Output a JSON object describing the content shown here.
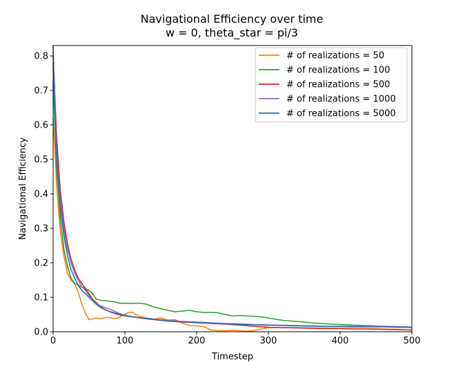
{
  "chart_data": {
    "type": "line",
    "title": "Navigational Efficiency over time",
    "subtitle": "w = 0, theta_star = pi/3",
    "xlabel": "Timestep",
    "ylabel": "Navigational Efficiency",
    "xlim": [
      0,
      500
    ],
    "ylim": [
      0,
      0.83
    ],
    "xticks": [
      0,
      100,
      200,
      300,
      400,
      500
    ],
    "yticks": [
      0.0,
      0.1,
      0.2,
      0.3,
      0.4,
      0.5,
      0.6,
      0.7,
      0.8
    ],
    "xtick_labels": [
      "0",
      "100",
      "200",
      "300",
      "400",
      "500"
    ],
    "ytick_labels": [
      "0.0",
      "0.1",
      "0.2",
      "0.3",
      "0.4",
      "0.5",
      "0.6",
      "0.7",
      "0.8"
    ],
    "grid": false,
    "legend_position": "top-right",
    "series": [
      {
        "name": "# of realizations = 50",
        "color": "#ff7f0e",
        "x": [
          0,
          5,
          10,
          15,
          20,
          25,
          30,
          35,
          40,
          45,
          50,
          55,
          60,
          65,
          70,
          75,
          80,
          85,
          90,
          95,
          100,
          105,
          110,
          115,
          120,
          130,
          140,
          150,
          160,
          170,
          180,
          190,
          200,
          210,
          220,
          230,
          240,
          250,
          260,
          270,
          280,
          290,
          300,
          320,
          340,
          360,
          380,
          400,
          420,
          440,
          460,
          480,
          500
        ],
        "y": [
          0.62,
          0.42,
          0.29,
          0.22,
          0.17,
          0.15,
          0.14,
          0.115,
          0.08,
          0.055,
          0.035,
          0.037,
          0.04,
          0.038,
          0.04,
          0.042,
          0.04,
          0.038,
          0.04,
          0.045,
          0.05,
          0.056,
          0.057,
          0.05,
          0.045,
          0.04,
          0.037,
          0.04,
          0.034,
          0.035,
          0.025,
          0.018,
          0.017,
          0.015,
          0.005,
          0.003,
          0.003,
          0.004,
          0.003,
          0.002,
          0.003,
          0.008,
          0.012,
          0.012,
          0.012,
          0.011,
          0.01,
          0.01,
          0.009,
          0.009,
          0.008,
          0.007,
          0.005
        ]
      },
      {
        "name": "# of realizations = 100",
        "color": "#2ca02c",
        "x": [
          0,
          5,
          10,
          15,
          20,
          25,
          30,
          35,
          40,
          45,
          50,
          55,
          60,
          65,
          70,
          75,
          80,
          85,
          90,
          95,
          100,
          110,
          120,
          130,
          140,
          150,
          160,
          170,
          180,
          190,
          200,
          210,
          220,
          230,
          240,
          250,
          260,
          270,
          280,
          290,
          300,
          320,
          340,
          360,
          380,
          400,
          420,
          440,
          460,
          480,
          500
        ],
        "y": [
          0.72,
          0.47,
          0.33,
          0.24,
          0.19,
          0.155,
          0.14,
          0.135,
          0.13,
          0.125,
          0.12,
          0.11,
          0.095,
          0.092,
          0.09,
          0.09,
          0.088,
          0.087,
          0.084,
          0.082,
          0.083,
          0.082,
          0.083,
          0.08,
          0.072,
          0.067,
          0.062,
          0.058,
          0.06,
          0.062,
          0.058,
          0.056,
          0.056,
          0.055,
          0.05,
          0.046,
          0.047,
          0.046,
          0.045,
          0.043,
          0.04,
          0.033,
          0.03,
          0.026,
          0.023,
          0.021,
          0.019,
          0.018,
          0.016,
          0.014,
          0.012
        ]
      },
      {
        "name": "# of realizations = 500",
        "color": "#d62728",
        "x": [
          0,
          5,
          10,
          15,
          20,
          25,
          30,
          35,
          40,
          45,
          50,
          55,
          60,
          65,
          70,
          80,
          90,
          100,
          110,
          120,
          140,
          160,
          180,
          200,
          220,
          240,
          260,
          280,
          300,
          320,
          340,
          360,
          380,
          400,
          420,
          440,
          460,
          480,
          500
        ],
        "y": [
          0.8,
          0.56,
          0.41,
          0.32,
          0.255,
          0.21,
          0.18,
          0.155,
          0.14,
          0.125,
          0.11,
          0.095,
          0.085,
          0.075,
          0.067,
          0.057,
          0.05,
          0.046,
          0.043,
          0.04,
          0.035,
          0.031,
          0.028,
          0.026,
          0.024,
          0.022,
          0.019,
          0.016,
          0.013,
          0.012,
          0.011,
          0.01,
          0.009,
          0.009,
          0.008,
          0.008,
          0.007,
          0.006,
          0.005
        ]
      },
      {
        "name": "# of realizations = 1000",
        "color": "#9467bd",
        "x": [
          0,
          5,
          10,
          15,
          20,
          25,
          30,
          35,
          40,
          45,
          50,
          55,
          60,
          65,
          70,
          80,
          90,
          100,
          110,
          120,
          140,
          160,
          180,
          200,
          220,
          240,
          260,
          280,
          300,
          320,
          340,
          360,
          380,
          400,
          420,
          440,
          460,
          480,
          500
        ],
        "y": [
          0.83,
          0.52,
          0.38,
          0.3,
          0.24,
          0.2,
          0.17,
          0.15,
          0.13,
          0.12,
          0.105,
          0.092,
          0.082,
          0.076,
          0.072,
          0.065,
          0.055,
          0.047,
          0.044,
          0.041,
          0.037,
          0.033,
          0.03,
          0.028,
          0.026,
          0.024,
          0.023,
          0.021,
          0.02,
          0.019,
          0.018,
          0.017,
          0.016,
          0.016,
          0.016,
          0.017,
          0.016,
          0.015,
          0.014
        ]
      },
      {
        "name": "# of realizations = 5000",
        "color": "#1f77b4",
        "x": [
          0,
          5,
          10,
          15,
          20,
          25,
          30,
          35,
          40,
          45,
          50,
          55,
          60,
          65,
          70,
          80,
          90,
          100,
          110,
          120,
          140,
          160,
          180,
          200,
          220,
          240,
          260,
          280,
          300,
          320,
          340,
          360,
          380,
          400,
          420,
          440,
          460,
          480,
          500
        ],
        "y": [
          0.78,
          0.5,
          0.36,
          0.28,
          0.22,
          0.18,
          0.155,
          0.135,
          0.12,
          0.11,
          0.1,
          0.09,
          0.08,
          0.072,
          0.066,
          0.058,
          0.052,
          0.048,
          0.044,
          0.041,
          0.036,
          0.032,
          0.029,
          0.027,
          0.025,
          0.023,
          0.021,
          0.02,
          0.019,
          0.018,
          0.017,
          0.016,
          0.015,
          0.015,
          0.014,
          0.014,
          0.014,
          0.013,
          0.013
        ]
      }
    ]
  }
}
